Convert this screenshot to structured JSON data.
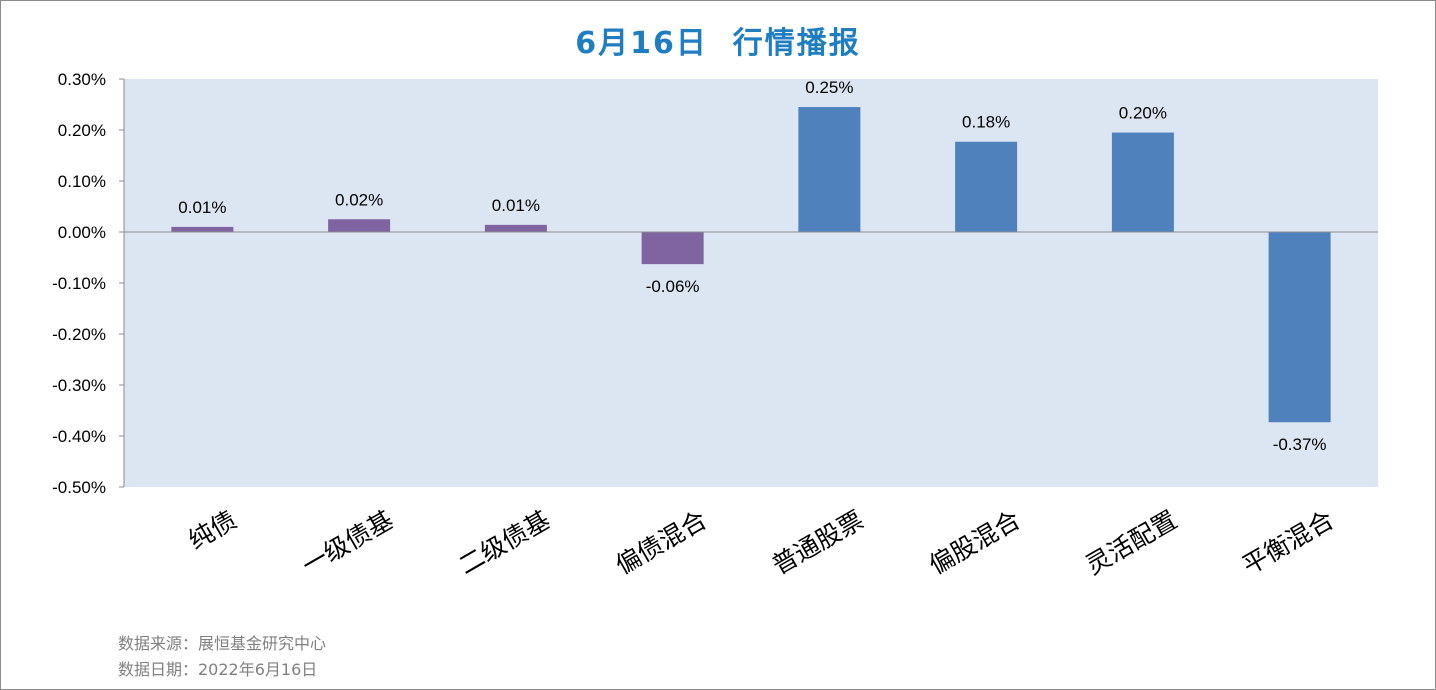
{
  "title": "6月16日  行情播报",
  "footer": {
    "source": "数据来源：展恒基金研究中心",
    "date": "数据日期：2022年6月16日"
  },
  "colors": {
    "plot_bg": "#dce6f2",
    "bond_bar": "#8064a2",
    "equity_bar": "#4f81bd",
    "title": "#1f7dc2"
  },
  "chart_data": {
    "type": "bar",
    "title": "6月16日  行情播报",
    "categories": [
      "纯债",
      "一级债基",
      "二级债基",
      "偏债混合",
      "普通股票",
      "偏股混合",
      "灵活配置",
      "平衡混合"
    ],
    "values": [
      0.01,
      0.025,
      0.014,
      -0.063,
      0.245,
      0.177,
      0.195,
      -0.373
    ],
    "data_labels": [
      "0.01%",
      "0.02%",
      "0.01%",
      "-0.06%",
      "0.25%",
      "0.18%",
      "0.20%",
      "-0.37%"
    ],
    "bar_colors": [
      "#8064a2",
      "#8064a2",
      "#8064a2",
      "#8064a2",
      "#4f81bd",
      "#4f81bd",
      "#4f81bd",
      "#4f81bd"
    ],
    "ylim": [
      -0.5,
      0.3
    ],
    "yticks": [
      0.3,
      0.2,
      0.1,
      0.0,
      -0.1,
      -0.2,
      -0.3,
      -0.4,
      -0.5
    ],
    "ytick_labels": [
      "0.30%",
      "0.20%",
      "0.10%",
      "0.00%",
      "-0.10%",
      "-0.20%",
      "-0.30%",
      "-0.40%",
      "-0.50%"
    ],
    "xlabel": "",
    "ylabel": "",
    "grid": false,
    "legend": "none"
  }
}
